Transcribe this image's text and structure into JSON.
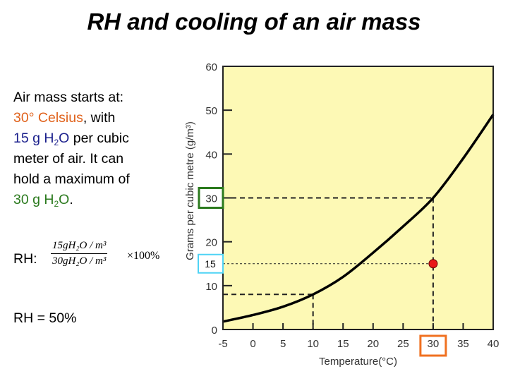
{
  "title": "RH and cooling of an air mass",
  "description": {
    "line1": "Air mass starts at:",
    "temp": "30° Celsius",
    "temp_suffix": ", with",
    "vapor_pre": "15 g H",
    "vapor_sub": "2",
    "vapor_post": "O",
    "vapor_suffix": " per cubic",
    "line4": "meter of air. It can",
    "line5": "hold a maximum of",
    "max_pre": "30 g H",
    "max_sub": "2",
    "max_post": "O",
    "max_suffix": "."
  },
  "formula": {
    "label": "RH:",
    "numerator": "15gH₂O / m³",
    "denominator": "30gH₂O / m³",
    "multiplier": "×100%"
  },
  "result": "RH = 50%",
  "colors": {
    "orange": "#e0621c",
    "blue": "#1a1f8c",
    "green": "#2b7a1e",
    "cyan": "#4fd3f5",
    "plot_bg": "#fdf9b5",
    "point": "#e81818"
  },
  "chart_data": {
    "type": "line",
    "xlabel": "Temperature(°C)",
    "ylabel": "Grams per cubic metre (g/m³)",
    "xlim": [
      -5,
      40
    ],
    "ylim": [
      0,
      60
    ],
    "xticks": [
      "-5",
      "0",
      "5",
      "10",
      "15",
      "20",
      "25",
      "30",
      "35",
      "40"
    ],
    "yticks": [
      "0",
      "10",
      "20",
      "30",
      "40",
      "50",
      "60"
    ],
    "grid": false,
    "series": [
      {
        "x": [
          -5,
          0,
          5,
          10,
          15,
          20,
          25,
          30,
          35,
          40
        ],
        "y": [
          1.8,
          3.3,
          5.2,
          8,
          12,
          17.5,
          23.5,
          30,
          39,
          49
        ]
      }
    ],
    "guides": [
      {
        "style": "dashed",
        "x": 30,
        "y": 30
      },
      {
        "style": "dashed",
        "x": 10,
        "y": 8
      }
    ],
    "dotted_line_y": 15,
    "point": {
      "x": 30,
      "y": 15
    },
    "highlights": {
      "y_saturation": "30",
      "y_actual": "15",
      "x_temperature": "30"
    }
  }
}
